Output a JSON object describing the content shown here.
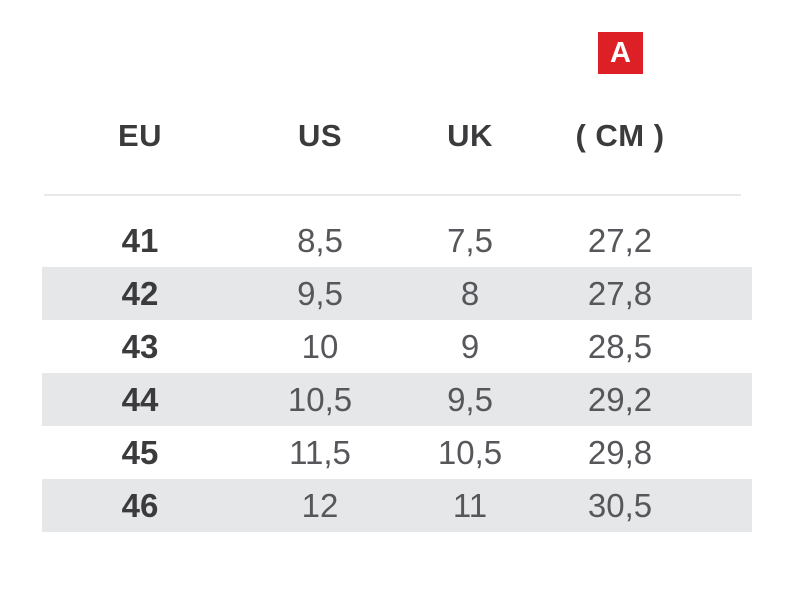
{
  "badge": {
    "label": "A",
    "background": "#dd2026",
    "text_color": "#ffffff"
  },
  "table": {
    "columns": [
      {
        "label": "EU"
      },
      {
        "label": "US"
      },
      {
        "label": "UK"
      },
      {
        "label": "( CM )"
      }
    ],
    "rows": [
      {
        "eu": "41",
        "us": "8,5",
        "uk": "7,5",
        "cm": "27,2"
      },
      {
        "eu": "42",
        "us": "9,5",
        "uk": "8",
        "cm": "27,8"
      },
      {
        "eu": "43",
        "us": "10",
        "uk": "9",
        "cm": "28,5"
      },
      {
        "eu": "44",
        "us": "10,5",
        "uk": "9,5",
        "cm": "29,2"
      },
      {
        "eu": "45",
        "us": "11,5",
        "uk": "10,5",
        "cm": "29,8"
      },
      {
        "eu": "46",
        "us": "12",
        "uk": "11",
        "cm": "30,5"
      }
    ],
    "colors": {
      "shaded_row_bg": "#e6e7e9",
      "divider": "#e9e9ea",
      "header_text": "#3b3b3d",
      "eu_text": "#3b3b3d",
      "value_text": "#57575b",
      "badge_red": "#dd2026"
    }
  },
  "chart_data": {
    "type": "table",
    "columns": [
      "EU",
      "US",
      "UK",
      "( CM )"
    ],
    "rows": [
      [
        "41",
        "8,5",
        "7,5",
        "27,2"
      ],
      [
        "42",
        "9,5",
        "8",
        "27,8"
      ],
      [
        "43",
        "10",
        "9",
        "28,5"
      ],
      [
        "44",
        "10,5",
        "9,5",
        "29,2"
      ],
      [
        "45",
        "11,5",
        "10,5",
        "29,8"
      ],
      [
        "46",
        "12",
        "11",
        "30,5"
      ]
    ],
    "annotations": [
      "A"
    ],
    "layout_hints": {
      "zebra_striping": "rows 42, 44, 46 shaded",
      "decimal_separator": "comma",
      "badge_over_column": "( CM )"
    }
  }
}
